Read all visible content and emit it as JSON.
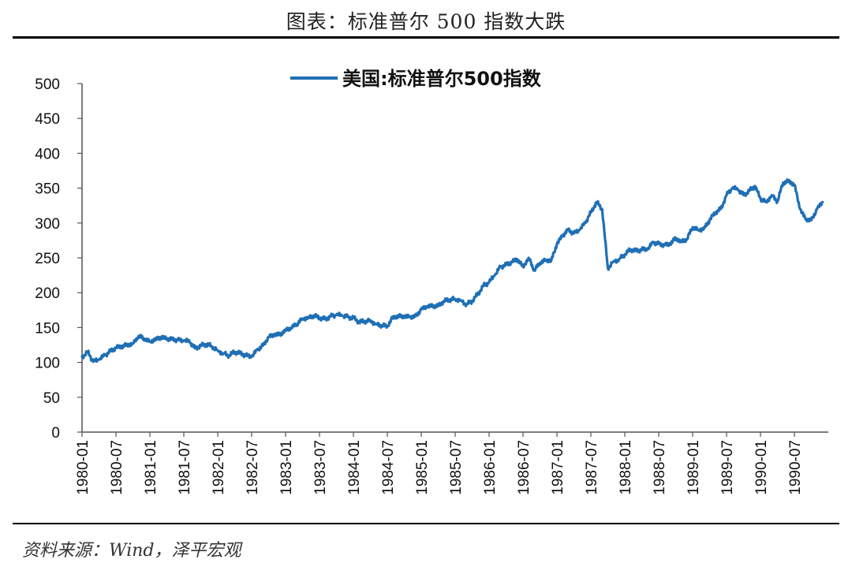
{
  "figure_title": "图表：标准普尔 500 指数大跌",
  "source_text": "资料来源：Wind，泽平宏观",
  "colors": {
    "series": "#1f6fb5",
    "axis": "#555555"
  },
  "chart_data": {
    "type": "line",
    "title": "",
    "xlabel": "",
    "ylabel": "",
    "ylim": [
      0,
      500
    ],
    "yticks": [
      0,
      50,
      100,
      150,
      200,
      250,
      300,
      350,
      400,
      450,
      500
    ],
    "xlim": [
      "1980-01",
      "1990-12"
    ],
    "xticks": [
      "1980-01",
      "1980-07",
      "1981-01",
      "1981-07",
      "1982-01",
      "1982-07",
      "1983-01",
      "1983-07",
      "1984-01",
      "1984-07",
      "1985-01",
      "1985-07",
      "1986-01",
      "1986-07",
      "1987-01",
      "1987-07",
      "1988-01",
      "1988-07",
      "1989-01",
      "1989-07",
      "1990-01",
      "1990-07"
    ],
    "legend_position": "top-center",
    "grid": false,
    "series": [
      {
        "name": "美国:标准普尔500指数",
        "x": [
          "1980-01",
          "1980-02",
          "1980-03",
          "1980-04",
          "1980-05",
          "1980-06",
          "1980-07",
          "1980-08",
          "1980-09",
          "1980-10",
          "1980-11",
          "1980-12",
          "1981-01",
          "1981-02",
          "1981-03",
          "1981-04",
          "1981-05",
          "1981-06",
          "1981-07",
          "1981-08",
          "1981-09",
          "1981-10",
          "1981-11",
          "1981-12",
          "1982-01",
          "1982-02",
          "1982-03",
          "1982-04",
          "1982-05",
          "1982-06",
          "1982-07",
          "1982-08",
          "1982-09",
          "1982-10",
          "1982-11",
          "1982-12",
          "1983-01",
          "1983-02",
          "1983-03",
          "1983-04",
          "1983-05",
          "1983-06",
          "1983-07",
          "1983-08",
          "1983-09",
          "1983-10",
          "1983-11",
          "1983-12",
          "1984-01",
          "1984-02",
          "1984-03",
          "1984-04",
          "1984-05",
          "1984-06",
          "1984-07",
          "1984-08",
          "1984-09",
          "1984-10",
          "1984-11",
          "1984-12",
          "1985-01",
          "1985-02",
          "1985-03",
          "1985-04",
          "1985-05",
          "1985-06",
          "1985-07",
          "1985-08",
          "1985-09",
          "1985-10",
          "1985-11",
          "1985-12",
          "1986-01",
          "1986-02",
          "1986-03",
          "1986-04",
          "1986-05",
          "1986-06",
          "1986-07",
          "1986-08",
          "1986-09",
          "1986-10",
          "1986-11",
          "1986-12",
          "1987-01",
          "1987-02",
          "1987-03",
          "1987-04",
          "1987-05",
          "1987-06",
          "1987-07",
          "1987-08",
          "1987-09",
          "1987-10",
          "1987-11",
          "1987-12",
          "1988-01",
          "1988-02",
          "1988-03",
          "1988-04",
          "1988-05",
          "1988-06",
          "1988-07",
          "1988-08",
          "1988-09",
          "1988-10",
          "1988-11",
          "1988-12",
          "1989-01",
          "1989-02",
          "1989-03",
          "1989-04",
          "1989-05",
          "1989-06",
          "1989-07",
          "1989-08",
          "1989-09",
          "1989-10",
          "1989-11",
          "1989-12",
          "1990-01",
          "1990-02",
          "1990-03",
          "1990-04",
          "1990-05",
          "1990-06",
          "1990-07",
          "1990-08",
          "1990-09",
          "1990-10",
          "1990-11",
          "1990-12"
        ],
        "values": [
          108,
          115,
          101,
          104,
          110,
          116,
          121,
          123,
          125,
          127,
          138,
          134,
          130,
          133,
          136,
          134,
          133,
          132,
          131,
          130,
          120,
          124,
          126,
          123,
          117,
          113,
          110,
          115,
          113,
          110,
          108,
          118,
          124,
          136,
          140,
          140,
          146,
          150,
          155,
          163,
          164,
          167,
          164,
          162,
          166,
          168,
          167,
          165,
          164,
          158,
          159,
          160,
          155,
          153,
          152,
          165,
          166,
          166,
          165,
          166,
          176,
          180,
          181,
          181,
          188,
          190,
          191,
          189,
          183,
          188,
          198,
          210,
          215,
          225,
          237,
          240,
          244,
          248,
          237,
          250,
          232,
          243,
          247,
          246,
          270,
          282,
          290,
          285,
          290,
          300,
          315,
          330,
          320,
          235,
          245,
          248,
          255,
          262,
          260,
          262,
          262,
          272,
          270,
          268,
          270,
          278,
          273,
          277,
          294,
          290,
          292,
          304,
          315,
          320,
          340,
          350,
          348,
          340,
          346,
          353,
          335,
          330,
          340,
          331,
          358,
          360,
          355,
          320,
          305,
          304,
          320,
          330
        ]
      }
    ]
  }
}
